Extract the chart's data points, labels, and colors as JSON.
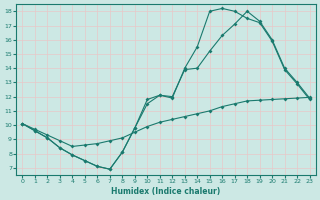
{
  "xlabel": "Humidex (Indice chaleur)",
  "xlim": [
    -0.5,
    23.5
  ],
  "ylim": [
    6.5,
    18.5
  ],
  "xticks": [
    0,
    1,
    2,
    3,
    4,
    5,
    6,
    7,
    8,
    9,
    10,
    11,
    12,
    13,
    14,
    15,
    16,
    17,
    18,
    19,
    20,
    21,
    22,
    23
  ],
  "yticks": [
    7,
    8,
    9,
    10,
    11,
    12,
    13,
    14,
    15,
    16,
    17,
    18
  ],
  "line_color": "#1a7a6e",
  "bg_color": "#cce8e4",
  "grid_color": "#b8d8d4",
  "line1_x": [
    0,
    1,
    2,
    3,
    4,
    5,
    6,
    7,
    8,
    9,
    10,
    11,
    12,
    13,
    14,
    15,
    16,
    17,
    18,
    19,
    20,
    21,
    22,
    23
  ],
  "line1_y": [
    10.1,
    9.6,
    9.1,
    8.4,
    7.9,
    7.5,
    7.1,
    6.9,
    8.1,
    9.8,
    11.8,
    12.1,
    12.0,
    13.9,
    14.0,
    15.2,
    16.3,
    17.1,
    18.0,
    17.3,
    16.0,
    14.0,
    13.0,
    11.9
  ],
  "line2_x": [
    0,
    1,
    2,
    3,
    4,
    5,
    6,
    7,
    8,
    9,
    10,
    11,
    12,
    13,
    14,
    15,
    16,
    17,
    18,
    19,
    20,
    21,
    22,
    23
  ],
  "line2_y": [
    10.1,
    9.6,
    9.1,
    8.4,
    7.9,
    7.5,
    7.1,
    6.9,
    8.1,
    9.8,
    11.5,
    12.1,
    11.9,
    14.0,
    15.5,
    18.0,
    18.2,
    18.0,
    17.5,
    17.2,
    15.9,
    13.9,
    12.9,
    11.8
  ],
  "line3_x": [
    0,
    1,
    2,
    3,
    4,
    5,
    6,
    7,
    8,
    9,
    10,
    11,
    12,
    13,
    14,
    15,
    16,
    17,
    18,
    19,
    20,
    21,
    22,
    23
  ],
  "line3_y": [
    10.1,
    9.7,
    9.3,
    8.9,
    8.5,
    8.6,
    8.7,
    8.9,
    9.1,
    9.5,
    9.9,
    10.2,
    10.4,
    10.6,
    10.8,
    11.0,
    11.3,
    11.5,
    11.7,
    11.75,
    11.8,
    11.85,
    11.9,
    11.95
  ]
}
